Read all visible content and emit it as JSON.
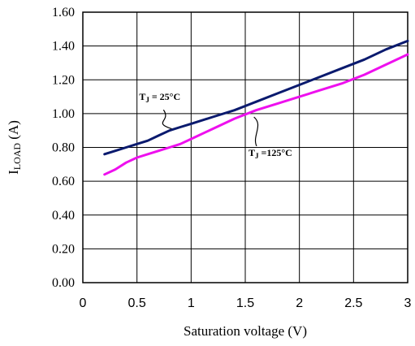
{
  "chart_data": {
    "type": "line",
    "xlabel": "Saturation voltage (V)",
    "ylabel_main": "I",
    "ylabel_sub": "LOAD",
    "ylabel_unit": " (A)",
    "xlim": [
      0,
      3
    ],
    "ylim": [
      0,
      1.6
    ],
    "x_ticks": [
      "0",
      "0.5",
      "1",
      "1.5",
      "2",
      "2.5",
      "3"
    ],
    "y_ticks": [
      "0.00",
      "0.20",
      "0.40",
      "0.60",
      "0.80",
      "1.00",
      "1.20",
      "1.40",
      "1.60"
    ],
    "grid": true,
    "series": [
      {
        "color": "#0a1a6e",
        "x": [
          0.2,
          0.3,
          0.4,
          0.5,
          0.6,
          0.7,
          0.8,
          0.9,
          1.0,
          1.2,
          1.4,
          1.6,
          1.8,
          2.0,
          2.2,
          2.4,
          2.6,
          2.8,
          3.0
        ],
        "y": [
          0.76,
          0.78,
          0.8,
          0.82,
          0.84,
          0.87,
          0.9,
          0.92,
          0.94,
          0.98,
          1.02,
          1.07,
          1.12,
          1.17,
          1.22,
          1.27,
          1.32,
          1.38,
          1.43
        ]
      },
      {
        "color": "#ee10ee",
        "x": [
          0.2,
          0.3,
          0.4,
          0.5,
          0.6,
          0.7,
          0.8,
          0.9,
          1.0,
          1.2,
          1.4,
          1.6,
          1.8,
          2.0,
          2.2,
          2.4,
          2.6,
          2.8,
          3.0
        ],
        "y": [
          0.64,
          0.67,
          0.71,
          0.74,
          0.76,
          0.78,
          0.8,
          0.82,
          0.85,
          0.91,
          0.97,
          1.02,
          1.06,
          1.1,
          1.14,
          1.18,
          1.23,
          1.29,
          1.35
        ]
      }
    ],
    "annotations": [
      {
        "text_main": "T",
        "text_sub": "J",
        "text_rest": " = 25°C",
        "x": 0.52,
        "y": 1.08,
        "arrow_to": [
          0.82,
          0.91
        ]
      },
      {
        "text_main": "T",
        "text_sub": "J",
        "text_rest": " =125°C",
        "x": 1.53,
        "y": 0.75,
        "arrow_to": [
          1.58,
          0.98
        ]
      }
    ]
  }
}
